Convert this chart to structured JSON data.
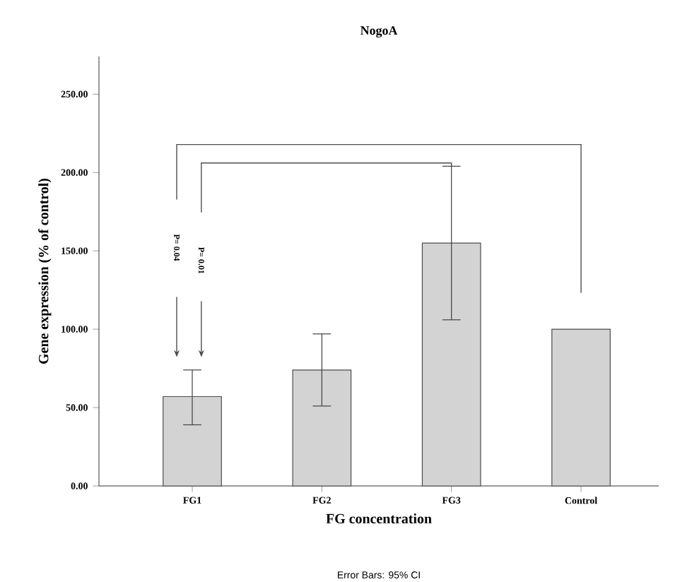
{
  "chart_data": {
    "type": "bar",
    "title": "NogoA",
    "xlabel": "FG concentration",
    "ylabel": "Gene expression (% of control)",
    "categories": [
      "FG1",
      "FG2",
      "FG3",
      "Control"
    ],
    "values": [
      57,
      74,
      155,
      100
    ],
    "color": "#d3d3d3",
    "errors": [
      [
        39,
        74
      ],
      [
        51,
        97
      ],
      [
        106,
        204
      ],
      null
    ],
    "ylim": [
      0,
      274
    ],
    "yticks": [
      {
        "value": 0,
        "label": "0.00"
      },
      {
        "value": 50,
        "label": "50.00"
      },
      {
        "value": 100,
        "label": "100.00"
      },
      {
        "value": 150,
        "label": "150.00"
      },
      {
        "value": 200,
        "label": "200.00"
      },
      {
        "value": 250,
        "label": "250.00"
      }
    ],
    "grid": false,
    "annotations": [
      "P= 0.04",
      "P= 0.01",
      "Error Bars: 95% CI"
    ]
  }
}
